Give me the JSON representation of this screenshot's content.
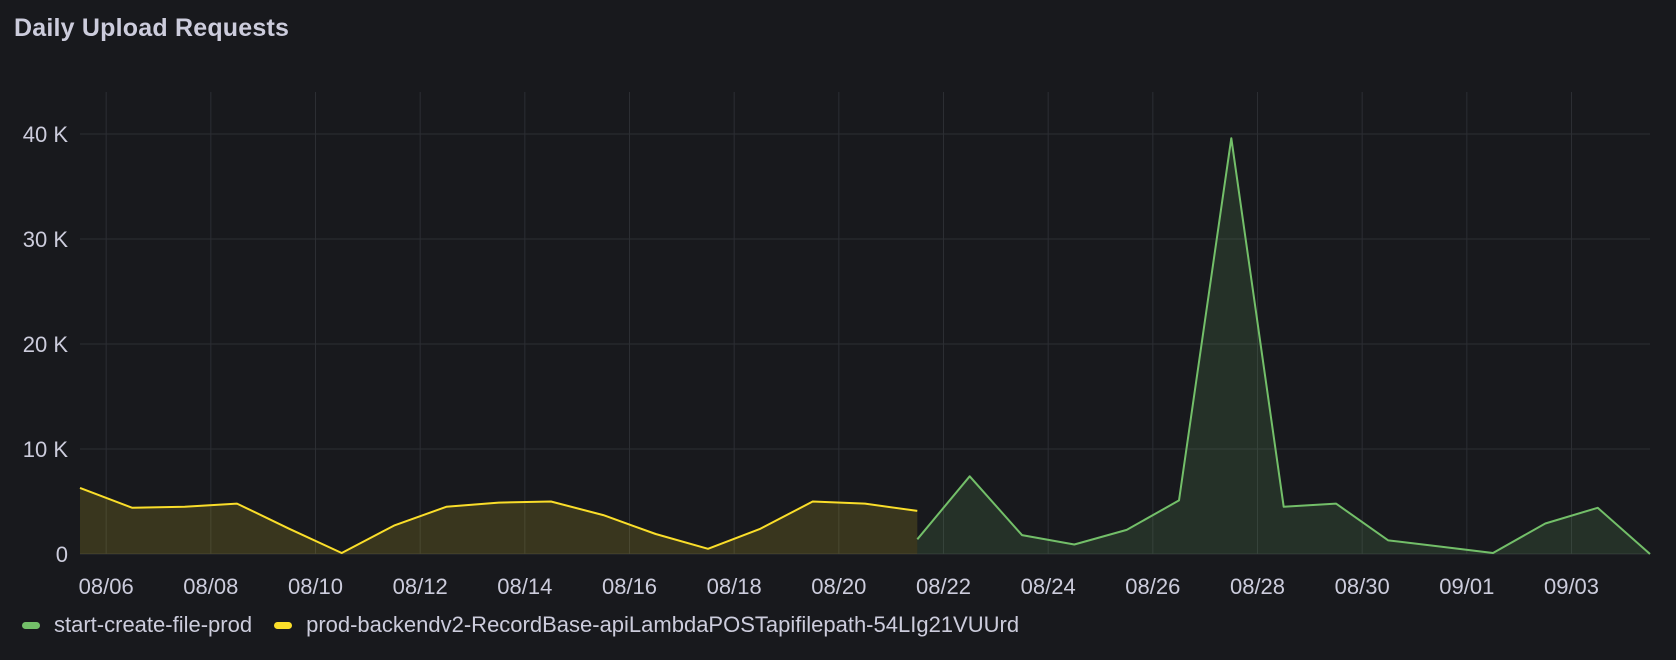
{
  "panel": {
    "title": "Daily Upload Requests"
  },
  "chart_data": {
    "type": "area",
    "title": "Daily Upload Requests",
    "xlabel": "",
    "ylabel": "",
    "ylim": [
      0,
      44000
    ],
    "xlim": [
      "08/05 12:00",
      "09/04 12:00"
    ],
    "grid": true,
    "legend_position": "bottom-left",
    "y_ticks": [
      {
        "value": 0,
        "label": "0"
      },
      {
        "value": 10000,
        "label": "10 K"
      },
      {
        "value": 20000,
        "label": "20 K"
      },
      {
        "value": 30000,
        "label": "30 K"
      },
      {
        "value": 40000,
        "label": "40 K"
      }
    ],
    "x_ticks": [
      "08/06",
      "08/08",
      "08/10",
      "08/12",
      "08/14",
      "08/16",
      "08/18",
      "08/20",
      "08/22",
      "08/24",
      "08/26",
      "08/28",
      "08/30",
      "09/01",
      "09/03"
    ],
    "series": [
      {
        "name": "start-create-file-prod",
        "color": "#73bf69",
        "x": [
          "08/21 12:00",
          "08/22 12:00",
          "08/23 12:00",
          "08/24 12:00",
          "08/25 12:00",
          "08/26 12:00",
          "08/27 12:00",
          "08/28 12:00",
          "08/29 12:00",
          "08/30 12:00",
          "08/31 12:00",
          "09/01 12:00",
          "09/02 12:00",
          "09/03 12:00",
          "09/04 12:00"
        ],
        "values": [
          1400,
          7400,
          1800,
          900,
          2300,
          5100,
          39600,
          4500,
          4800,
          1300,
          700,
          100,
          2900,
          4400,
          0
        ]
      },
      {
        "name": "prod-backendv2-RecordBase-apiLambdaPOSTapifilepath-54LIg21VUUrd",
        "color": "#fade2a",
        "x": [
          "08/05 12:00",
          "08/06 12:00",
          "08/07 12:00",
          "08/08 12:00",
          "08/09 12:00",
          "08/10 12:00",
          "08/11 12:00",
          "08/12 12:00",
          "08/13 12:00",
          "08/14 12:00",
          "08/15 12:00",
          "08/16 12:00",
          "08/17 12:00",
          "08/18 12:00",
          "08/19 12:00",
          "08/20 12:00",
          "08/21 12:00"
        ],
        "values": [
          6300,
          4400,
          4500,
          4800,
          2400,
          100,
          2700,
          4500,
          4900,
          5000,
          3700,
          1900,
          500,
          2400,
          5000,
          4800,
          4100
        ]
      }
    ]
  }
}
